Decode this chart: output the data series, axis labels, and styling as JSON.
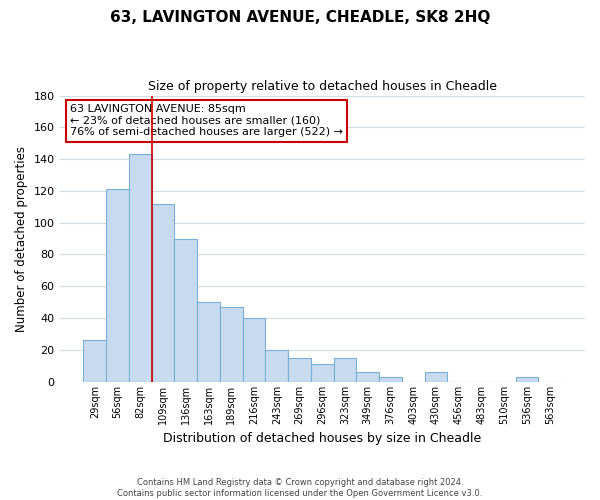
{
  "title": "63, LAVINGTON AVENUE, CHEADLE, SK8 2HQ",
  "subtitle": "Size of property relative to detached houses in Cheadle",
  "xlabel": "Distribution of detached houses by size in Cheadle",
  "ylabel": "Number of detached properties",
  "bar_labels": [
    "29sqm",
    "56sqm",
    "82sqm",
    "109sqm",
    "136sqm",
    "163sqm",
    "189sqm",
    "216sqm",
    "243sqm",
    "269sqm",
    "296sqm",
    "323sqm",
    "349sqm",
    "376sqm",
    "403sqm",
    "430sqm",
    "456sqm",
    "483sqm",
    "510sqm",
    "536sqm",
    "563sqm"
  ],
  "bar_values": [
    26,
    121,
    143,
    112,
    90,
    50,
    47,
    40,
    20,
    15,
    11,
    15,
    6,
    3,
    0,
    6,
    0,
    0,
    0,
    3,
    0
  ],
  "bar_color": "#c8daf0",
  "bar_edge_color": "#7aafd4",
  "property_line_color": "#cc0000",
  "ylim": [
    0,
    180
  ],
  "yticks": [
    0,
    20,
    40,
    60,
    80,
    100,
    120,
    140,
    160,
    180
  ],
  "annotation_title": "63 LAVINGTON AVENUE: 85sqm",
  "annotation_line1": "← 23% of detached houses are smaller (160)",
  "annotation_line2": "76% of semi-detached houses are larger (522) →",
  "annotation_box_color": "#ffffff",
  "annotation_box_edge": "#cc0000",
  "footer_line1": "Contains HM Land Registry data © Crown copyright and database right 2024.",
  "footer_line2": "Contains public sector information licensed under the Open Government Licence v3.0.",
  "background_color": "#ffffff",
  "grid_color": "#d0dce8"
}
